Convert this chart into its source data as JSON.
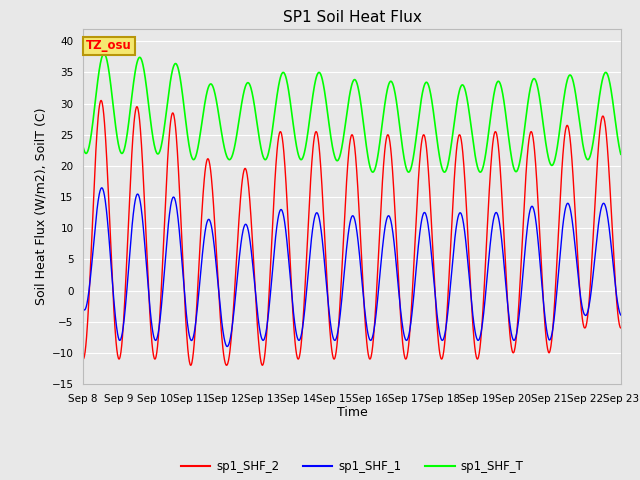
{
  "title": "SP1 Soil Heat Flux",
  "xlabel": "Time",
  "ylabel": "Soil Heat Flux (W/m2), SoilT (C)",
  "ylim": [
    -15,
    42
  ],
  "yticks": [
    -15,
    -10,
    -5,
    0,
    5,
    10,
    15,
    20,
    25,
    30,
    35,
    40
  ],
  "plot_bg_color": "#e8e8e8",
  "grid_color": "white",
  "tz_label": "TZ_osu",
  "tz_box_facecolor": "#f5e870",
  "tz_box_edgecolor": "#b8960a",
  "legend_entries": [
    "sp1_SHF_2",
    "sp1_SHF_1",
    "sp1_SHF_T"
  ],
  "line_colors": [
    "red",
    "blue",
    "lime"
  ],
  "n_days": 15,
  "start_day": 8,
  "title_fontsize": 11,
  "tick_fontsize": 7.5,
  "label_fontsize": 9
}
